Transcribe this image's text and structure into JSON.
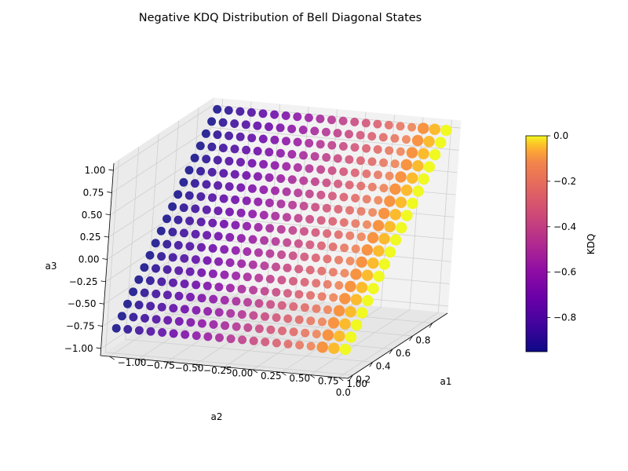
{
  "chart_data": {
    "type": "scatter",
    "projection": "3d",
    "title": "Negative KDQ Distribution of Bell Diagonal States",
    "xlabel": "a1",
    "ylabel": "a2",
    "zlabel": "a3",
    "x_ticks": [
      "−1.00",
      "−0.75",
      "−0.50",
      "−0.25",
      "0.00",
      "0.25",
      "0.50",
      "0.75",
      "1.00"
    ],
    "y_ticks": [
      "0.0",
      "0.2",
      "0.4",
      "0.6",
      "0.8"
    ],
    "z_ticks": [
      "−1.00",
      "−0.75",
      "−0.50",
      "−0.25",
      "0.00",
      "0.25",
      "0.50",
      "0.75",
      "1.00"
    ],
    "xlim": [
      -1.0,
      1.0
    ],
    "ylim": [
      0.0,
      0.9
    ],
    "zlim": [
      -1.0,
      1.0
    ],
    "colorbar": {
      "label": "KDQ",
      "colormap": "plasma",
      "range": [
        -0.95,
        0.0
      ],
      "ticks": [
        "0.0",
        "−0.2",
        "−0.4",
        "−0.6",
        "−0.8"
      ]
    },
    "point_set": {
      "a1_values": [
        -1.0,
        -0.9,
        -0.8,
        -0.7,
        -0.6,
        -0.5,
        -0.4,
        -0.3,
        -0.2,
        -0.1,
        0.0,
        0.1,
        0.2,
        0.3,
        0.4,
        0.5,
        0.6,
        0.7,
        0.8,
        0.9,
        1.0
      ],
      "a2_rule": "a2 = 0.9 - s, s from 0 to 0.9 in steps of 0.05",
      "a3_rule": "a3 = 1 - 2s",
      "kdq_rule": "kdq = -0.95 * (1 - a1) / 2",
      "a2_range": [
        0.0,
        0.9
      ],
      "a3_range": [
        -0.8,
        1.0
      ],
      "kdq_range": [
        -0.95,
        0.0
      ]
    },
    "grid": true,
    "legend": "none"
  }
}
